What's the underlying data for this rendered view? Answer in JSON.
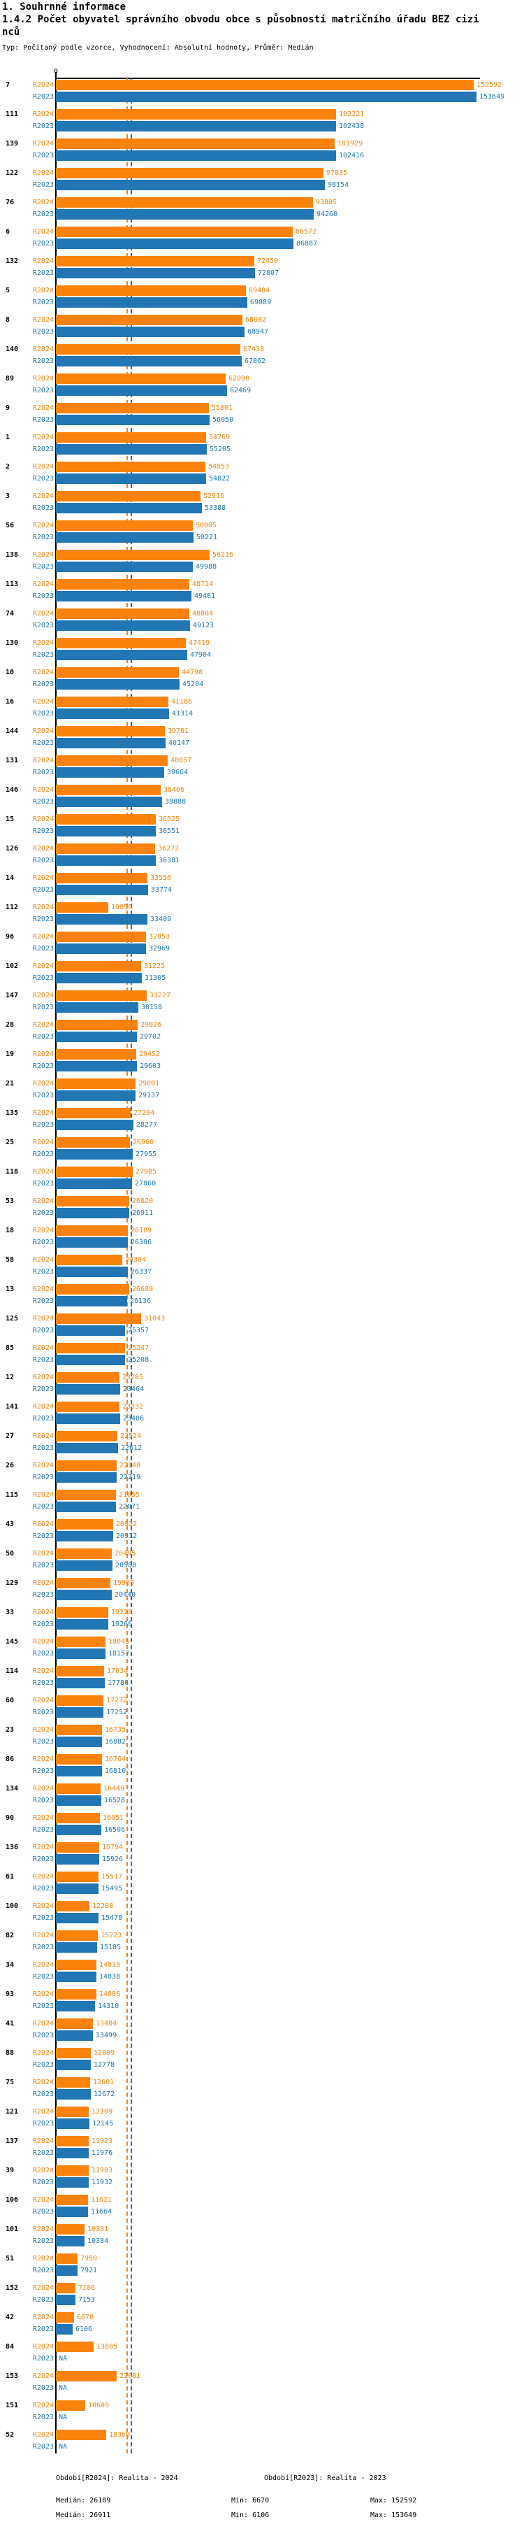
{
  "header": {
    "section_title": "1. Souhrnné informace",
    "chart_title_line1": "1.4.2 Počet obyvatel správního obvodu obce s působností matričního úřadu BEZ cizi",
    "chart_title_line2": "nců",
    "meta_line": "Typ: Počítaný podle vzorce, Vyhodnocení: Absolutní hodnoty, Průměr: Medián"
  },
  "colors": {
    "r2024": "#fb830d",
    "r2023": "#2276b4",
    "axis": "#000000"
  },
  "chart_data": {
    "type": "bar",
    "orientation": "horizontal",
    "x_axis_zero_label": "0",
    "series_labels": [
      "R2024",
      "R2023"
    ],
    "na_label": "NA",
    "x_max_value": 153649,
    "medians": {
      "R2024": 26189,
      "R2023": 26911
    },
    "legend_note": "values shown at bar ends; NA = missing R2023 value",
    "groups": [
      {
        "id": "7",
        "r2024": 152592,
        "r2023": 153649
      },
      {
        "id": "111",
        "r2024": 102221,
        "r2023": 102438
      },
      {
        "id": "139",
        "r2024": 101929,
        "r2023": 102416
      },
      {
        "id": "122",
        "r2024": 97835,
        "r2023": 98154
      },
      {
        "id": "76",
        "r2024": 93805,
        "r2023": 94260
      },
      {
        "id": "6",
        "r2024": 86572,
        "r2023": 86887
      },
      {
        "id": "132",
        "r2024": 72450,
        "r2023": 72807
      },
      {
        "id": "5",
        "r2024": 69484,
        "r2023": 69889
      },
      {
        "id": "8",
        "r2024": 68082,
        "r2023": 68947
      },
      {
        "id": "140",
        "r2024": 67438,
        "r2023": 67862
      },
      {
        "id": "89",
        "r2024": 62090,
        "r2023": 62469
      },
      {
        "id": "9",
        "r2024": 55801,
        "r2023": 56050
      },
      {
        "id": "1",
        "r2024": 54769,
        "r2023": 55205
      },
      {
        "id": "2",
        "r2024": 54653,
        "r2023": 54822
      },
      {
        "id": "3",
        "r2024": 52916,
        "r2023": 53388
      },
      {
        "id": "56",
        "r2024": 50005,
        "r2023": 50221
      },
      {
        "id": "138",
        "r2024": 56216,
        "r2023": 49988
      },
      {
        "id": "113",
        "r2024": 48714,
        "r2023": 49481
      },
      {
        "id": "74",
        "r2024": 48804,
        "r2023": 49123
      },
      {
        "id": "130",
        "r2024": 47419,
        "r2023": 47904
      },
      {
        "id": "10",
        "r2024": 44798,
        "r2023": 45204
      },
      {
        "id": "16",
        "r2024": 41186,
        "r2023": 41314
      },
      {
        "id": "144",
        "r2024": 39781,
        "r2023": 40147
      },
      {
        "id": "131",
        "r2024": 40857,
        "r2023": 39664
      },
      {
        "id": "146",
        "r2024": 38406,
        "r2023": 38888
      },
      {
        "id": "15",
        "r2024": 36525,
        "r2023": 36551
      },
      {
        "id": "126",
        "r2024": 36272,
        "r2023": 36381
      },
      {
        "id": "14",
        "r2024": 33556,
        "r2023": 33774
      },
      {
        "id": "112",
        "r2024": 19056,
        "r2023": 33409
      },
      {
        "id": "96",
        "r2024": 32853,
        "r2023": 32969
      },
      {
        "id": "102",
        "r2024": 31225,
        "r2023": 31305
      },
      {
        "id": "147",
        "r2024": 33227,
        "r2023": 30158
      },
      {
        "id": "28",
        "r2024": 29826,
        "r2023": 29702
      },
      {
        "id": "19",
        "r2024": 29452,
        "r2023": 29603
      },
      {
        "id": "21",
        "r2024": 29001,
        "r2023": 29137
      },
      {
        "id": "135",
        "r2024": 27294,
        "r2023": 28277
      },
      {
        "id": "25",
        "r2024": 26960,
        "r2023": 27955
      },
      {
        "id": "118",
        "r2024": 27985,
        "r2023": 27860
      },
      {
        "id": "53",
        "r2024": 26820,
        "r2023": 26911
      },
      {
        "id": "18",
        "r2024": 26189,
        "r2023": 26386
      },
      {
        "id": "58",
        "r2024": 24304,
        "r2023": 26337
      },
      {
        "id": "13",
        "r2024": 26689,
        "r2023": 26136
      },
      {
        "id": "125",
        "r2024": 31043,
        "r2023": 25357
      },
      {
        "id": "85",
        "r2024": 25247,
        "r2023": 25208
      },
      {
        "id": "12",
        "r2024": 23285,
        "r2023": 23464
      },
      {
        "id": "141",
        "r2024": 23332,
        "r2023": 23406
      },
      {
        "id": "27",
        "r2024": 22524,
        "r2023": 22612
      },
      {
        "id": "26",
        "r2024": 22148,
        "r2023": 22219
      },
      {
        "id": "115",
        "r2024": 21855,
        "r2023": 22071
      },
      {
        "id": "43",
        "r2024": 20922,
        "r2023": 20912
      },
      {
        "id": "50",
        "r2024": 20495,
        "r2023": 20588
      },
      {
        "id": "129",
        "r2024": 19909,
        "r2023": 20440
      },
      {
        "id": "33",
        "r2024": 19228,
        "r2023": 19266
      },
      {
        "id": "145",
        "r2024": 18045,
        "r2023": 18157
      },
      {
        "id": "114",
        "r2024": 17634,
        "r2023": 17786
      },
      {
        "id": "60",
        "r2024": 17232,
        "r2023": 17252
      },
      {
        "id": "23",
        "r2024": 16735,
        "r2023": 16882
      },
      {
        "id": "86",
        "r2024": 16764,
        "r2023": 16810
      },
      {
        "id": "134",
        "r2024": 16449,
        "r2023": 16528
      },
      {
        "id": "90",
        "r2024": 16051,
        "r2023": 16506
      },
      {
        "id": "136",
        "r2024": 15794,
        "r2023": 15926
      },
      {
        "id": "61",
        "r2024": 15517,
        "r2023": 15495
      },
      {
        "id": "100",
        "r2024": 12208,
        "r2023": 15478
      },
      {
        "id": "82",
        "r2024": 15223,
        "r2023": 15185
      },
      {
        "id": "34",
        "r2024": 14813,
        "r2023": 14838
      },
      {
        "id": "93",
        "r2024": 14886,
        "r2023": 14310
      },
      {
        "id": "41",
        "r2024": 13484,
        "r2023": 13499
      },
      {
        "id": "88",
        "r2024": 12809,
        "r2023": 12778
      },
      {
        "id": "75",
        "r2024": 12601,
        "r2023": 12672
      },
      {
        "id": "121",
        "r2024": 12109,
        "r2023": 12145
      },
      {
        "id": "137",
        "r2024": 11923,
        "r2023": 11976
      },
      {
        "id": "39",
        "r2024": 11903,
        "r2023": 11932
      },
      {
        "id": "106",
        "r2024": 11621,
        "r2023": 11664
      },
      {
        "id": "101",
        "r2024": 10381,
        "r2023": 10384
      },
      {
        "id": "51",
        "r2024": 7950,
        "r2023": 7921
      },
      {
        "id": "152",
        "r2024": 7186,
        "r2023": 7153
      },
      {
        "id": "42",
        "r2024": 6670,
        "r2023": 6106
      },
      {
        "id": "84",
        "r2024": 13805,
        "r2023": null
      },
      {
        "id": "153",
        "r2024": 22081,
        "r2023": null
      },
      {
        "id": "151",
        "r2024": 10649,
        "r2023": null
      },
      {
        "id": "52",
        "r2024": 18369,
        "r2023": null
      }
    ]
  },
  "footer": {
    "period_r2024": "Období[R2024]: Realita - 2024",
    "period_r2023": "Období[R2023]: Realita - 2023",
    "stats_r2024": {
      "median": "Medián: 26189",
      "min": "Min: 6670",
      "max": "Max: 152592"
    },
    "stats_r2023": {
      "median": "Medián: 26911",
      "min": "Min: 6106",
      "max": "Max: 153649"
    }
  }
}
